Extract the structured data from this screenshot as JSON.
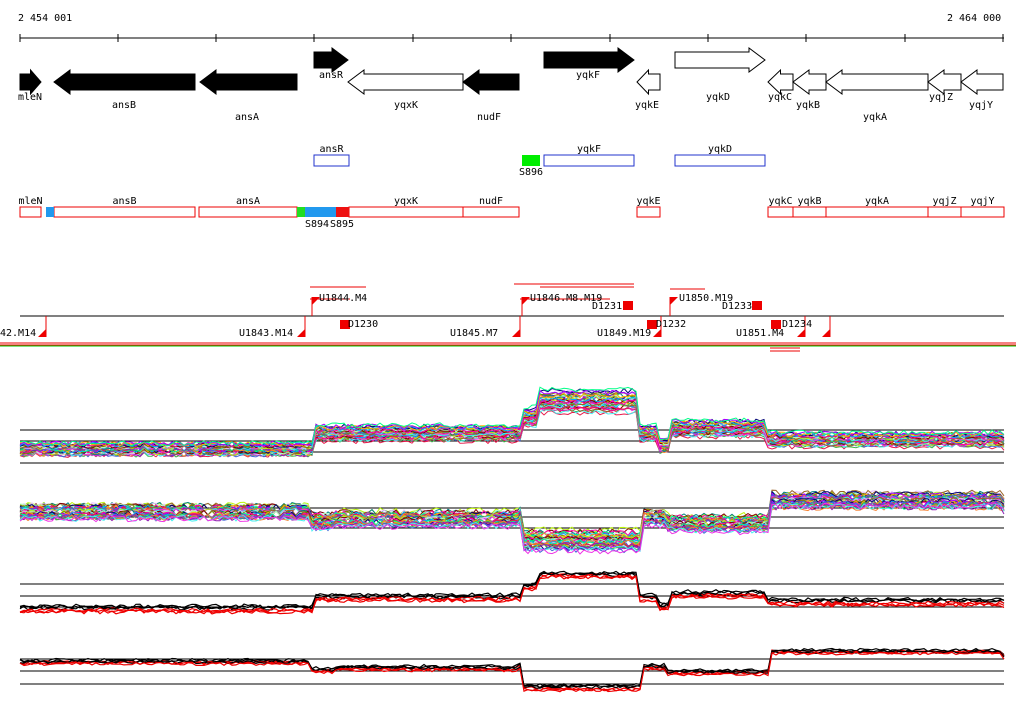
{
  "coords": {
    "start": "2 454 001",
    "end": "2 464 000"
  },
  "genes": [
    {
      "name": "mleN",
      "dir": "right",
      "filled": true
    },
    {
      "name": "ansB",
      "dir": "left",
      "filled": true
    },
    {
      "name": "ansA",
      "dir": "left",
      "filled": true
    },
    {
      "name": "ansR",
      "dir": "right",
      "filled": true
    },
    {
      "name": "yqxK",
      "dir": "left",
      "filled": false
    },
    {
      "name": "nudF",
      "dir": "left",
      "filled": true
    },
    {
      "name": "yqkF",
      "dir": "right",
      "filled": true
    },
    {
      "name": "yqkE",
      "dir": "left",
      "filled": false
    },
    {
      "name": "yqkD",
      "dir": "right",
      "filled": false
    },
    {
      "name": "yqkC",
      "dir": "left",
      "filled": false
    },
    {
      "name": "yqkB",
      "dir": "left",
      "filled": false
    },
    {
      "name": "yqkA",
      "dir": "left",
      "filled": false
    },
    {
      "name": "yqjZ",
      "dir": "left",
      "filled": false
    },
    {
      "name": "yqjY",
      "dir": "left",
      "filled": false
    }
  ],
  "blue_boxes": [
    {
      "name": "ansR"
    },
    {
      "name": "yqkF"
    },
    {
      "name": "yqkD"
    }
  ],
  "red_boxes": [
    {
      "name": "mleN"
    },
    {
      "name": "ansB"
    },
    {
      "name": "ansA"
    },
    {
      "name": "yqxK"
    },
    {
      "name": "nudF"
    },
    {
      "name": "yqkE"
    },
    {
      "name": "yqkC"
    },
    {
      "name": "yqkB"
    },
    {
      "name": "yqkA"
    },
    {
      "name": "yqjZ"
    },
    {
      "name": "yqjY"
    }
  ],
  "segments": [
    {
      "label": "S896",
      "color": "#00ee00"
    },
    {
      "label": "S894",
      "color": "#00cc00"
    },
    {
      "label": "S895",
      "color": "#ee1111"
    }
  ],
  "upper_labels": [
    "U1844.M4",
    "U1846.M8.M19",
    "D1231",
    "U1850.M19",
    "D1233",
    "D1230",
    "D1232",
    "D1234"
  ],
  "lower_labels": [
    "42.M14",
    "U1843.M14",
    "U1845.M7",
    "U1849.M19",
    "U1851.M4"
  ],
  "track_colors": {
    "black": "#000000",
    "red": "#ee0000",
    "green": "#00cc00",
    "blue": "#2233cc"
  }
}
